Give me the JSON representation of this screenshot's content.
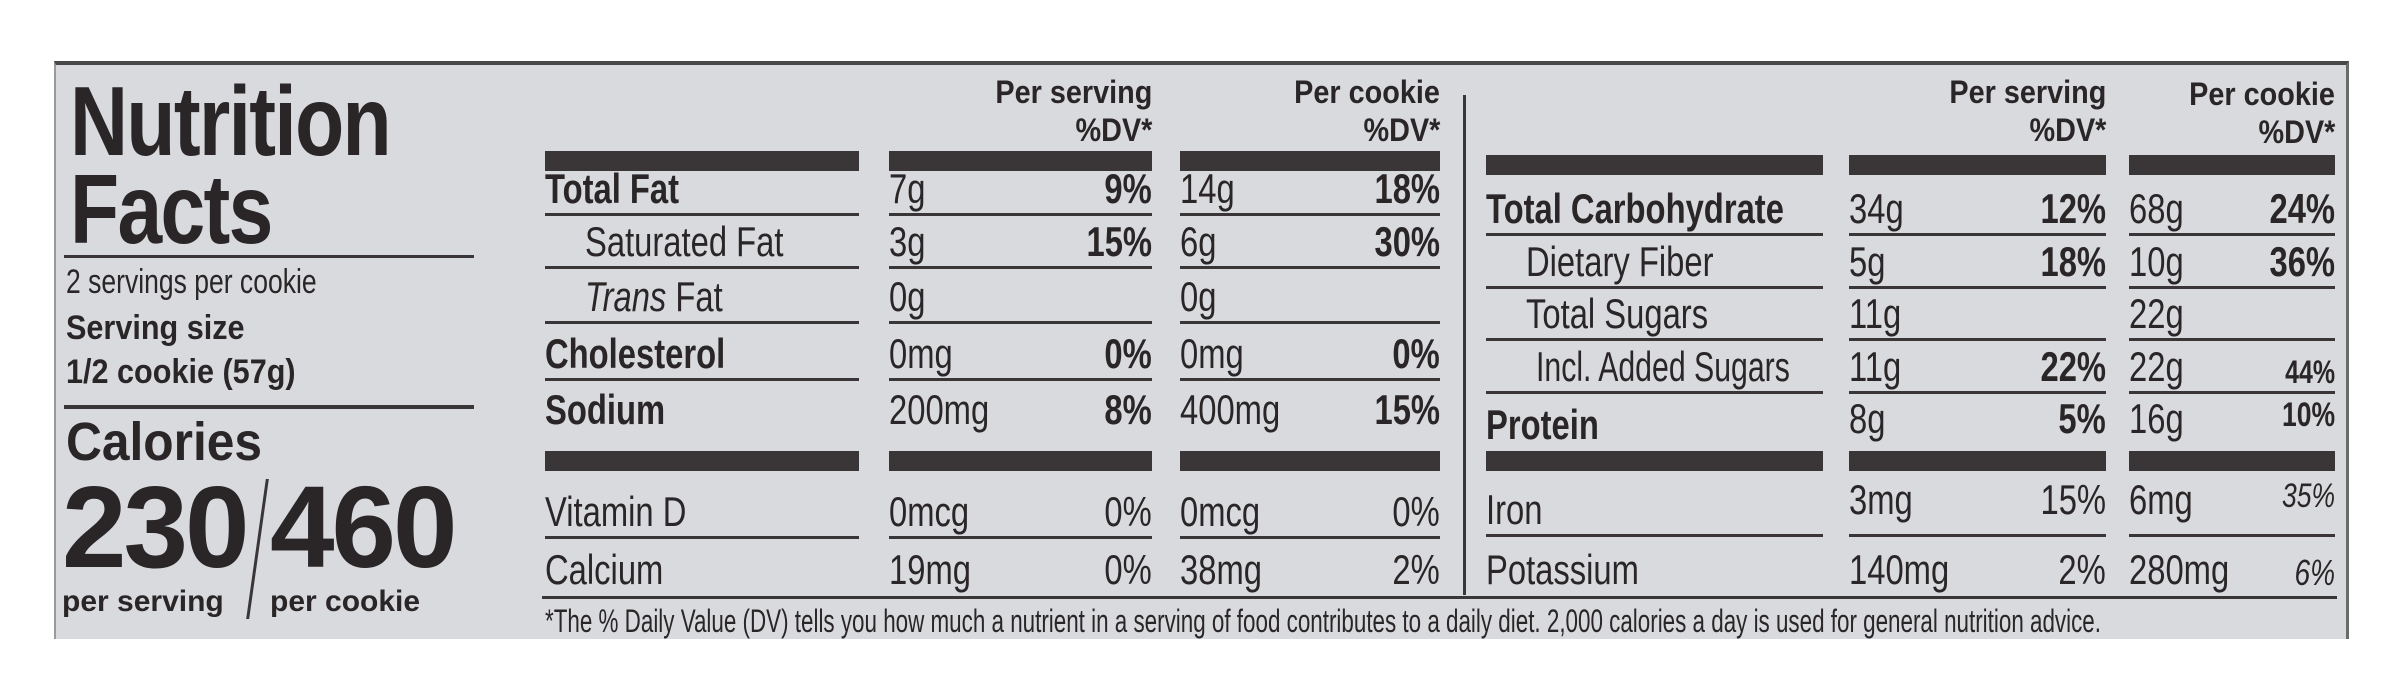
{
  "title_line1": "Nutrition",
  "title_line2": "Facts",
  "servings": "2 servings per cookie",
  "serving_size_label": "Serving size",
  "serving_size_value": "1/2 cookie (57g)",
  "calories_label": "Calories",
  "calories_per_serving": "230",
  "calories_per_cookie": "460",
  "per_serving_label": "per serving",
  "per_cookie_label": "per cookie",
  "headers": {
    "per_serving": "Per serving",
    "per_cookie": "Per cookie",
    "dv": "%DV*"
  },
  "left_rows": [
    {
      "name": "Total Fat",
      "s_amt": "7g",
      "s_dv": "9%",
      "c_amt": "14g",
      "c_dv": "18%"
    },
    {
      "name": "Saturated Fat",
      "s_amt": "3g",
      "s_dv": "15%",
      "c_amt": "6g",
      "c_dv": "30%"
    },
    {
      "name_italic": "Trans",
      "name": "Fat",
      "s_amt": "0g",
      "s_dv": "",
      "c_amt": "0g",
      "c_dv": ""
    },
    {
      "name": "Cholesterol",
      "s_amt": "0mg",
      "s_dv": "0%",
      "c_amt": "0mg",
      "c_dv": "0%"
    },
    {
      "name": "Sodium",
      "s_amt": "200mg",
      "s_dv": "8%",
      "c_amt": "400mg",
      "c_dv": "15%"
    },
    {
      "name": "Vitamin D",
      "s_amt": "0mcg",
      "s_dv": "0%",
      "c_amt": "0mcg",
      "c_dv": "0%"
    },
    {
      "name": "Calcium",
      "s_amt": "19mg",
      "s_dv": "0%",
      "c_amt": "38mg",
      "c_dv": "2%"
    }
  ],
  "right_rows": [
    {
      "name": "Total Carbohydrate",
      "s_amt": "34g",
      "s_dv": "12%",
      "c_amt": "68g",
      "c_dv": "24%"
    },
    {
      "name": "Dietary Fiber",
      "s_amt": "5g",
      "s_dv": "18%",
      "c_amt": "10g",
      "c_dv": "36%"
    },
    {
      "name": "Total Sugars",
      "s_amt": "11g",
      "s_dv": "",
      "c_amt": "22g",
      "c_dv": ""
    },
    {
      "name": "Incl. Added Sugars",
      "s_amt": "11g",
      "s_dv": "22%",
      "c_amt": "22g",
      "c_dv": "44%"
    },
    {
      "name": "Protein",
      "s_amt": "8g",
      "s_dv": "5%",
      "c_amt": "16g",
      "c_dv": "10%"
    },
    {
      "name": "Iron",
      "s_amt": "3mg",
      "s_dv": "15%",
      "c_amt": "6mg",
      "c_dv": "35%"
    },
    {
      "name": "Potassium",
      "s_amt": "140mg",
      "s_dv": "2%",
      "c_amt": "280mg",
      "c_dv": "6%"
    }
  ],
  "footnote": "*The % Daily Value (DV) tells you how much a nutrient in a serving of food contributes to a daily diet. 2,000 calories a day is used for general nutrition advice."
}
